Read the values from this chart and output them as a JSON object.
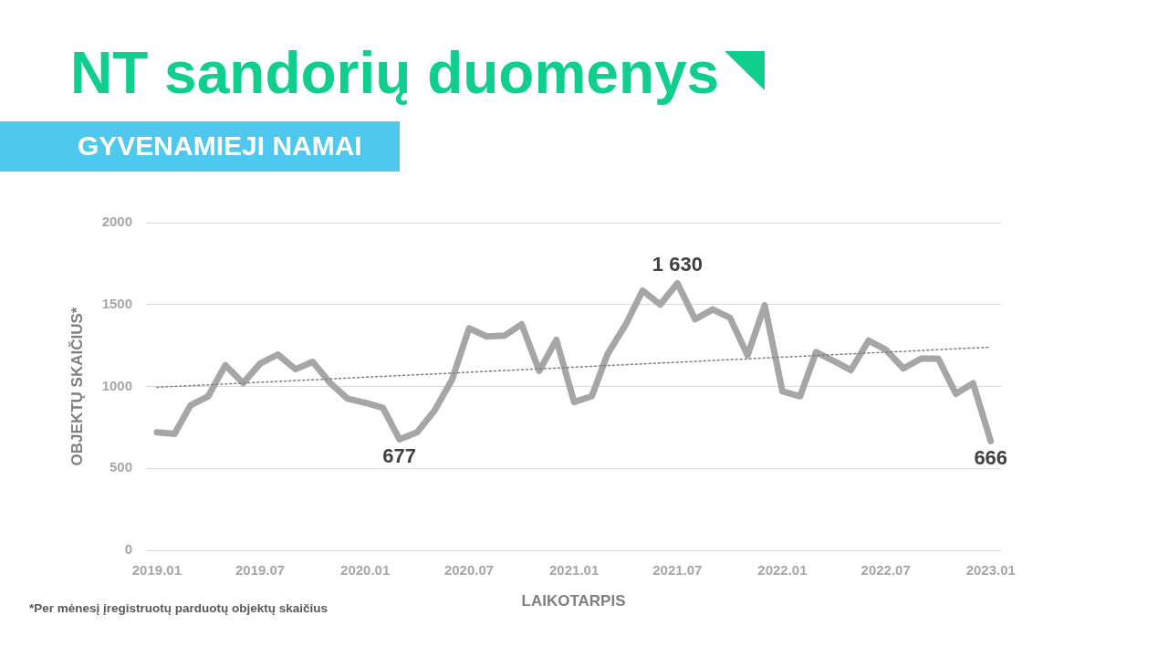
{
  "chart_data": {
    "type": "line",
    "title": "NT sandorių duomenys",
    "subtitle": "GYVENAMIEJI NAMAI",
    "xlabel": "LAIKOTARPIS",
    "ylabel": "OBJEKTŲ SKAIČIUS*",
    "annotations": [
      "*Per mėnesį įregistruotų parduotų objektų skaičius"
    ],
    "x": [
      "2019-01",
      "2019-02",
      "2019-03",
      "2019-04",
      "2019-05",
      "2019-06",
      "2019-07",
      "2019-08",
      "2019-09",
      "2019-10",
      "2019-11",
      "2019-12",
      "2020-01",
      "2020-02",
      "2020-03",
      "2020-04",
      "2020-05",
      "2020-06",
      "2020-07",
      "2020-08",
      "2020-09",
      "2020-10",
      "2020-11",
      "2020-12",
      "2021-01",
      "2021-02",
      "2021-03",
      "2021-04",
      "2021-05",
      "2021-06",
      "2021-07",
      "2021-08",
      "2021-09",
      "2021-10",
      "2021-11",
      "2021-12",
      "2022-01",
      "2022-02",
      "2022-03",
      "2022-04",
      "2022-05",
      "2022-06",
      "2022-07",
      "2022-08",
      "2022-09",
      "2022-10",
      "2022-11",
      "2022-12",
      "2023-01"
    ],
    "series": [
      {
        "color": "#a6a6a6",
        "marker": "none",
        "line_style": "solid",
        "values": [
          720,
          710,
          885,
          940,
          1130,
          1020,
          1140,
          1195,
          1105,
          1150,
          1020,
          925,
          900,
          870,
          677,
          720,
          850,
          1040,
          1355,
          1305,
          1310,
          1380,
          1095,
          1285,
          905,
          940,
          1200,
          1375,
          1585,
          1500,
          1630,
          1410,
          1470,
          1420,
          1190,
          1495,
          970,
          940,
          1210,
          1155,
          1100,
          1280,
          1225,
          1110,
          1170,
          1170,
          955,
          1020,
          666
        ],
        "value_labels": [
          null,
          null,
          null,
          null,
          null,
          null,
          null,
          null,
          null,
          null,
          null,
          null,
          null,
          null,
          "677",
          null,
          null,
          null,
          null,
          null,
          null,
          null,
          null,
          null,
          null,
          null,
          null,
          null,
          null,
          null,
          "1 630",
          null,
          null,
          null,
          null,
          null,
          null,
          null,
          null,
          null,
          null,
          null,
          null,
          null,
          null,
          null,
          null,
          null,
          "666"
        ]
      },
      {
        "type": "line",
        "x": [
          "2019-01",
          "2023-01"
        ],
        "values": [
          995,
          1240
        ],
        "color": "#808080",
        "line_style": "dotted",
        "marker": "none"
      }
    ],
    "xlim": [
      "2018-12-13",
      "2023-01-19"
    ],
    "xticks": [
      {
        "value": "2019-01",
        "label": "2019.01"
      },
      {
        "value": "2019-07",
        "label": "2019.07"
      },
      {
        "value": "2020-01",
        "label": "2020.01"
      },
      {
        "value": "2020-07",
        "label": "2020.07"
      },
      {
        "value": "2021-01",
        "label": "2021.01"
      },
      {
        "value": "2021-07",
        "label": "2021.07"
      },
      {
        "value": "2022-01",
        "label": "2022.01"
      },
      {
        "value": "2022-07",
        "label": "2022.07"
      },
      {
        "value": "2023-01",
        "label": "2023.01"
      }
    ],
    "ylim": [
      0,
      2000
    ],
    "yticks": [
      0,
      500,
      1000,
      1500,
      2000
    ],
    "grid": "y",
    "legend": false
  }
}
